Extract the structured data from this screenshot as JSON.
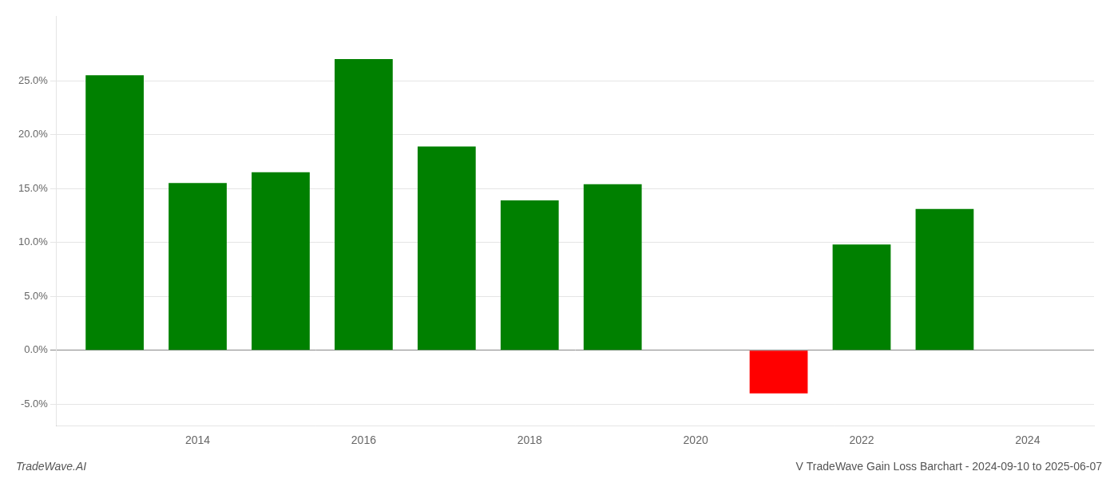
{
  "chart_data": {
    "type": "bar",
    "x": [
      2013,
      2014,
      2015,
      2016,
      2017,
      2018,
      2019,
      2021,
      2022,
      2023
    ],
    "values": [
      0.255,
      0.155,
      0.165,
      0.27,
      0.189,
      0.139,
      0.154,
      -0.04,
      0.098,
      0.131
    ],
    "colors": [
      "#008000",
      "#008000",
      "#008000",
      "#008000",
      "#008000",
      "#008000",
      "#008000",
      "#ff0000",
      "#008000",
      "#008000"
    ],
    "xlim": [
      2012.3,
      2024.8
    ],
    "xticks": [
      2014,
      2016,
      2018,
      2020,
      2022,
      2024
    ],
    "ylim": [
      -0.07,
      0.31
    ],
    "yticks": [
      {
        "value": -0.05,
        "label": "-5.0%"
      },
      {
        "value": 0.0,
        "label": "0.0%"
      },
      {
        "value": 0.05,
        "label": "5.0%"
      },
      {
        "value": 0.1,
        "label": "10.0%"
      },
      {
        "value": 0.15,
        "label": "15.0%"
      },
      {
        "value": 0.2,
        "label": "20.0%"
      },
      {
        "value": 0.25,
        "label": "25.0%"
      }
    ],
    "grid": true,
    "annotations": [
      "TradeWave.AI",
      "V TradeWave Gain Loss Barchart - 2024-09-10 to 2025-06-07"
    ]
  }
}
